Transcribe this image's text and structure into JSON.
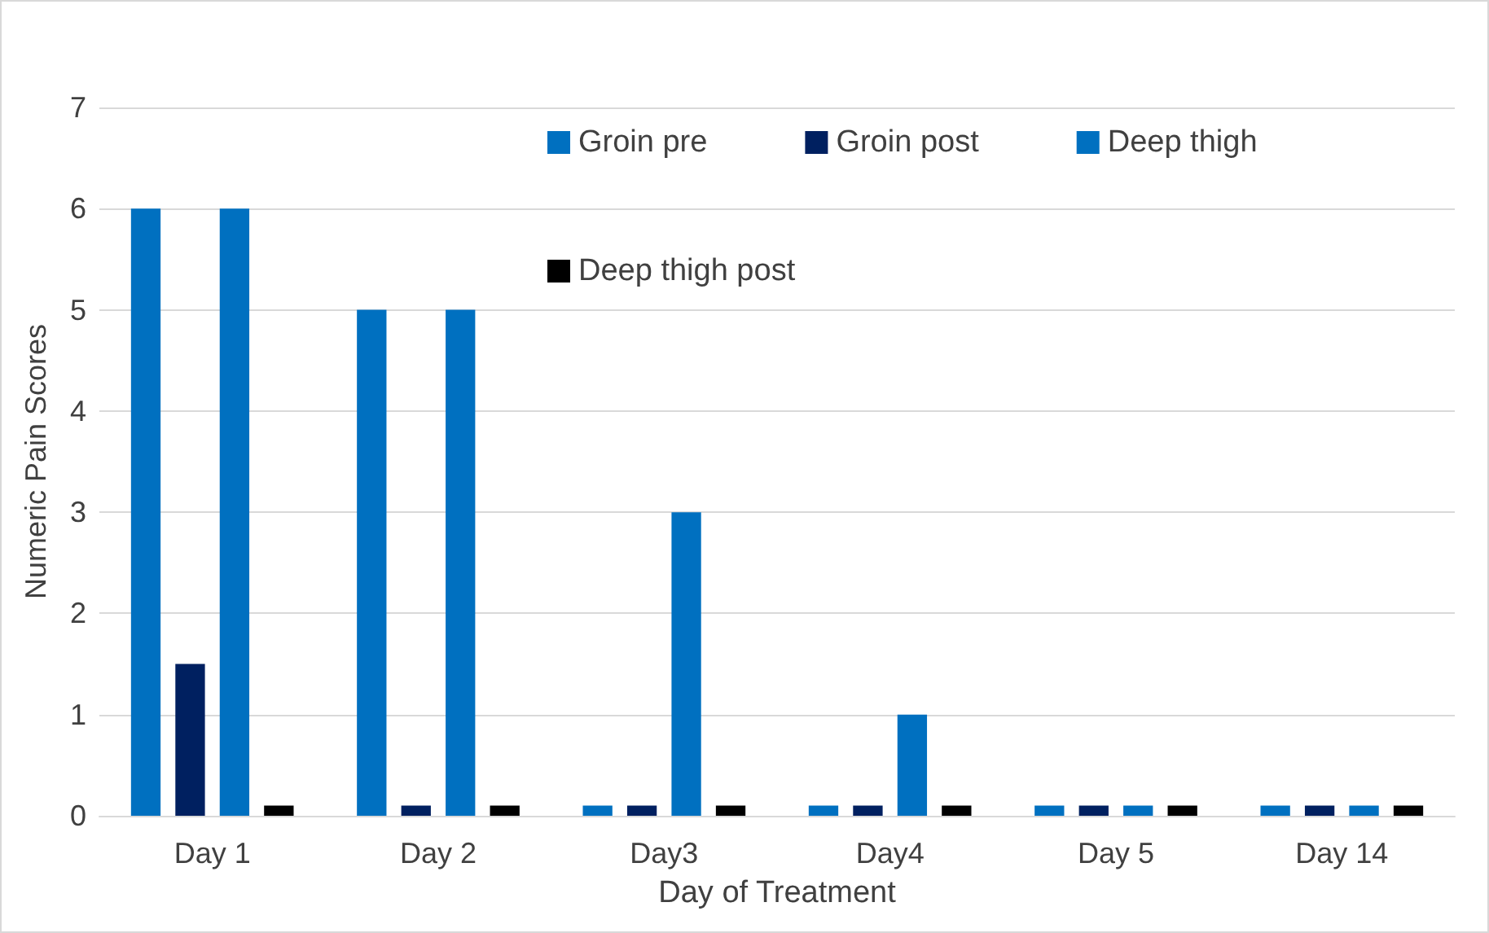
{
  "chart_data": {
    "type": "bar",
    "xlabel": "Day of Treatment",
    "ylabel": "Numeric Pain Scores",
    "categories": [
      "Day 1",
      "Day 2",
      "Day3",
      "Day4",
      "Day 5",
      "Day 14"
    ],
    "series": [
      {
        "name": "Groin pre",
        "color": "#0070c0",
        "values": [
          6,
          5,
          0.1,
          0.1,
          0.1,
          0.1
        ]
      },
      {
        "name": "Groin post",
        "color": "#002060",
        "values": [
          1.5,
          0.1,
          0.1,
          0.1,
          0.1,
          0.1
        ]
      },
      {
        "name": "Deep thigh",
        "color": "#0070c0",
        "values": [
          6,
          5,
          3,
          1,
          0.1,
          0.1
        ]
      },
      {
        "name": "Deep thigh post",
        "color": "#000000",
        "values": [
          0.1,
          0.1,
          0.1,
          0.1,
          0.1,
          0.1
        ]
      }
    ],
    "ylim": [
      0,
      7
    ],
    "yticks": [
      0,
      1,
      2,
      3,
      4,
      5,
      6,
      7
    ],
    "grid": "y",
    "legend": "top"
  }
}
